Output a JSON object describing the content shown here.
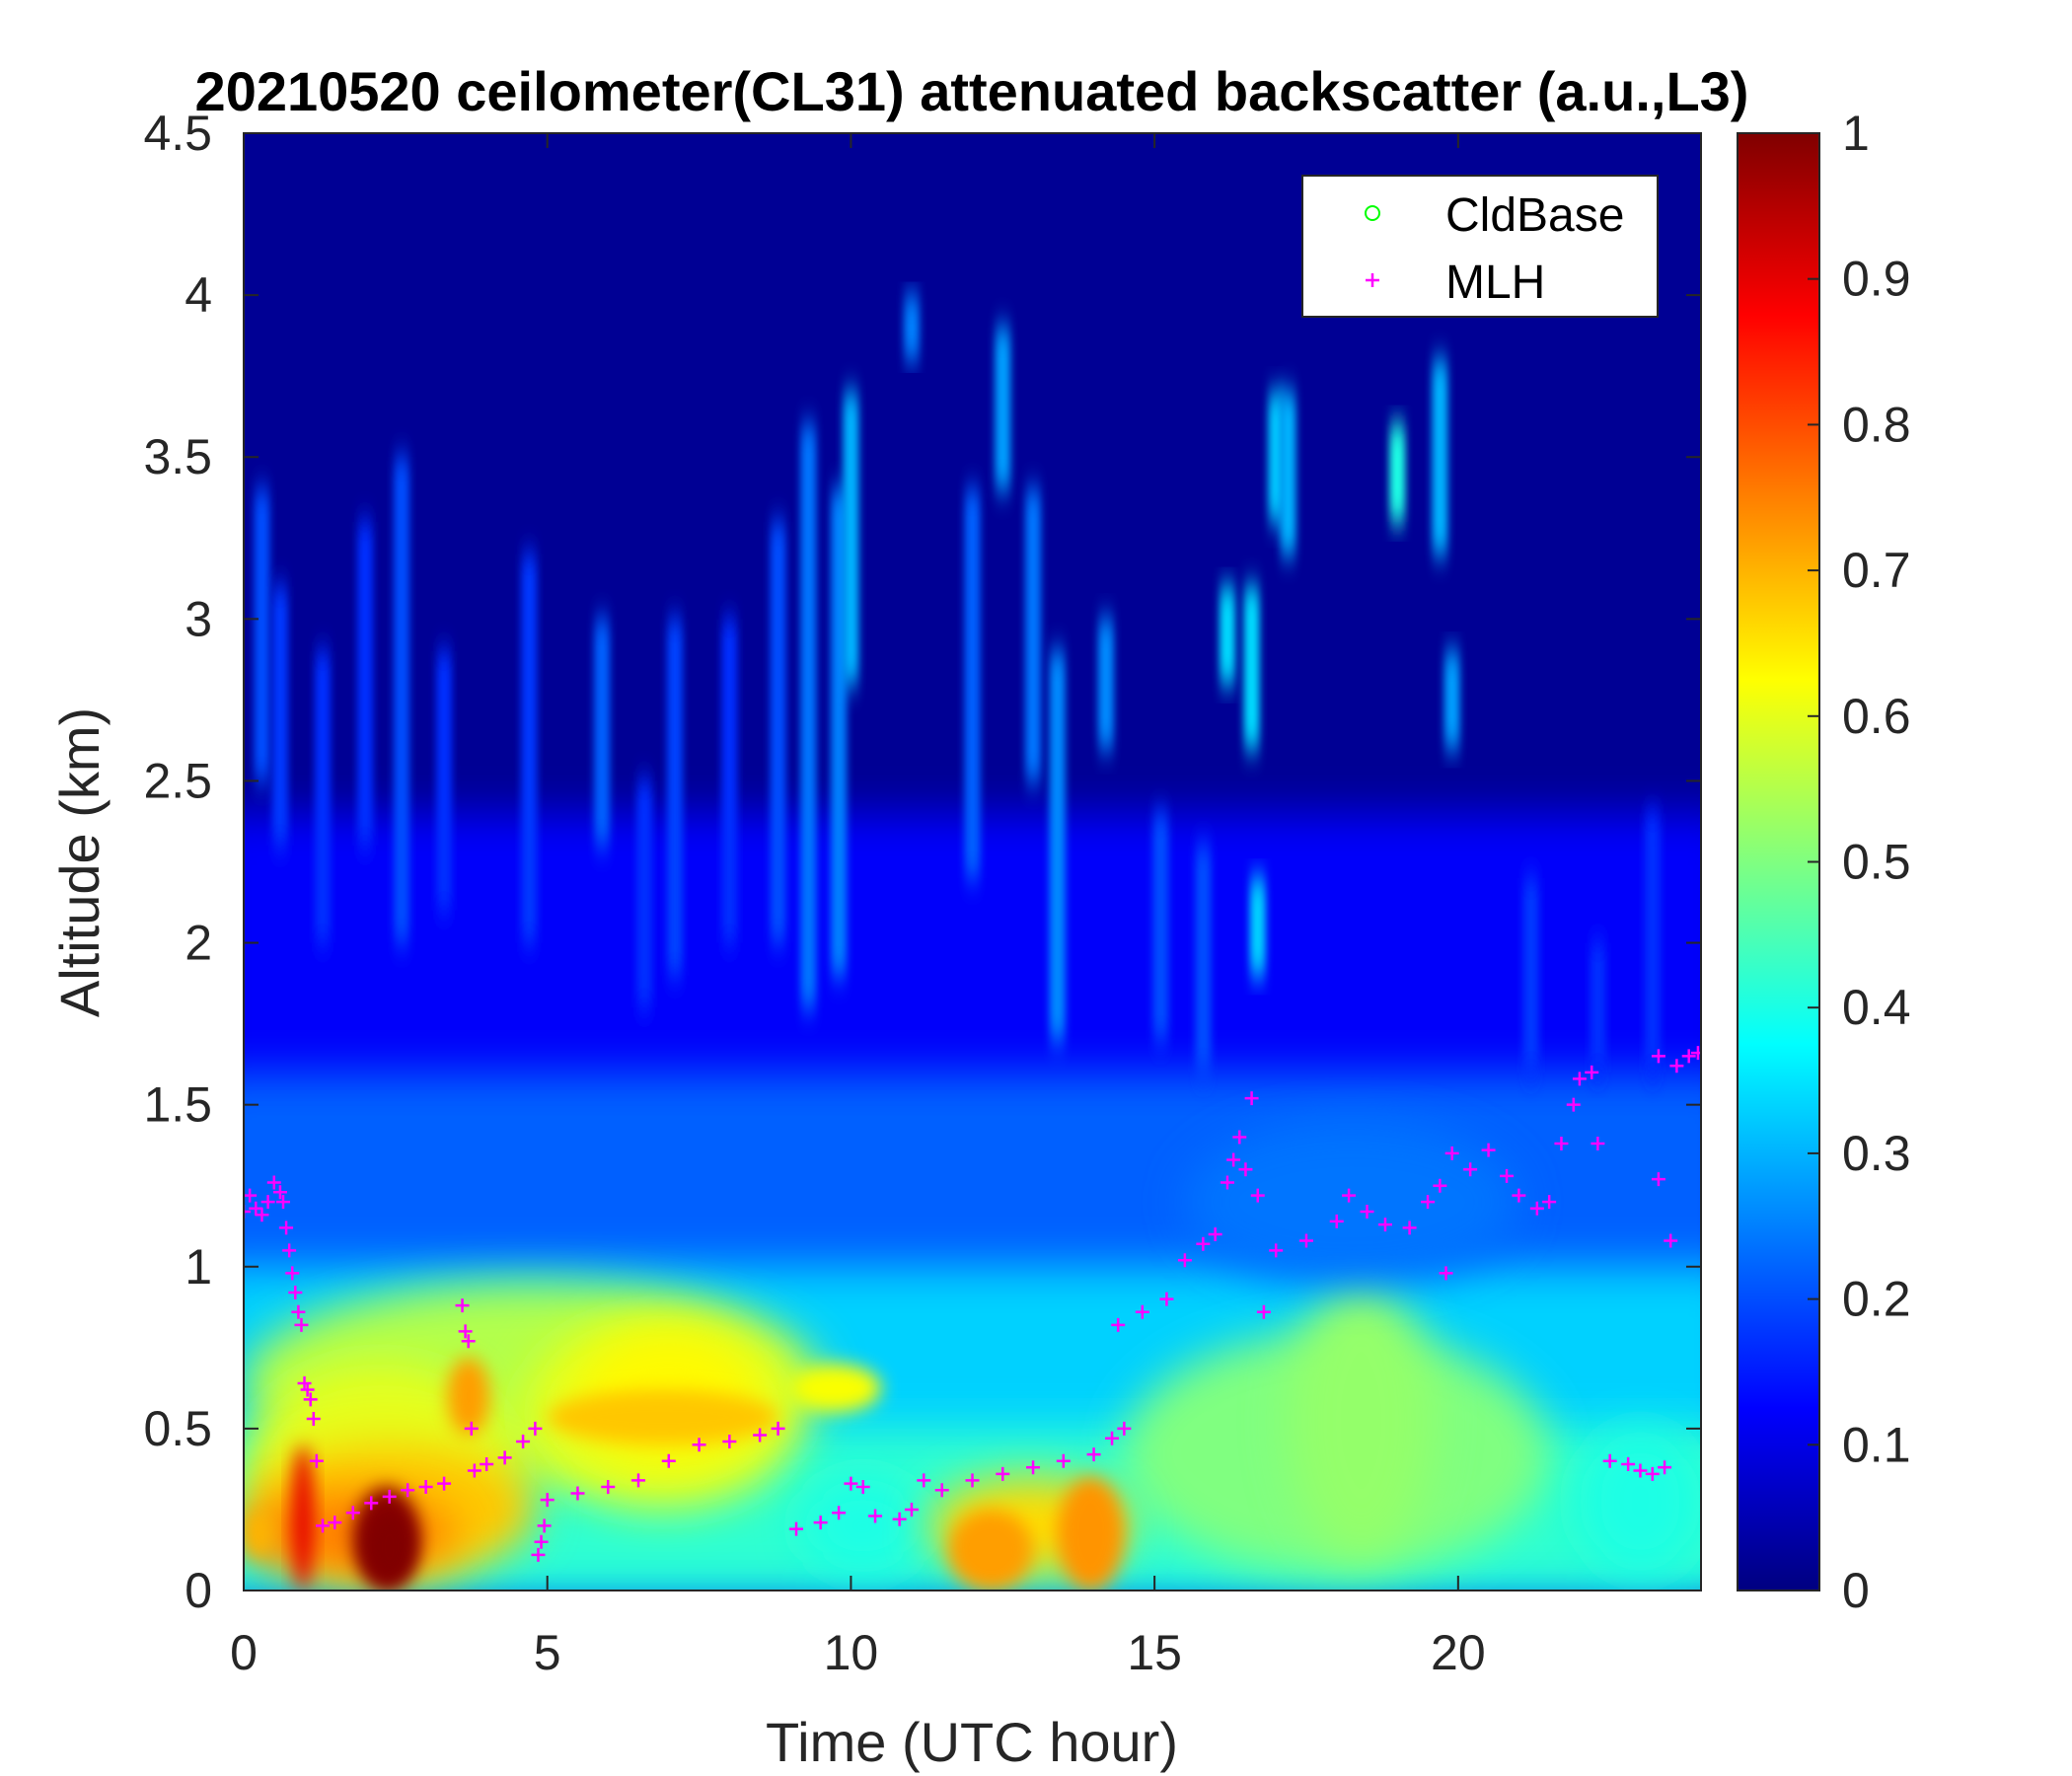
{
  "chart_data": {
    "type": "heatmap",
    "title": "20210520 ceilometer(CL31) attenuated backscatter (a.u.,L3)",
    "xlabel": "Time (UTC hour)",
    "ylabel": "Altitude (km)",
    "xlim": [
      0,
      24
    ],
    "ylim": [
      0,
      4.5
    ],
    "xticks": [
      0,
      5,
      10,
      15,
      20
    ],
    "xtick_labels": [
      "0",
      "5",
      "10",
      "15",
      "20"
    ],
    "yticks": [
      0,
      0.5,
      1,
      1.5,
      2,
      2.5,
      3,
      3.5,
      4,
      4.5
    ],
    "ytick_labels": [
      "0",
      "0.5",
      "1",
      "1.5",
      "2",
      "2.5",
      "3",
      "3.5",
      "4",
      "4.5"
    ],
    "colorbar": {
      "colormap": "jet",
      "range": [
        0,
        1
      ],
      "ticks": [
        0,
        0.1,
        0.2,
        0.3,
        0.4,
        0.5,
        0.6,
        0.7,
        0.8,
        0.9,
        1
      ],
      "tick_labels": [
        "0",
        "0.1",
        "0.2",
        "0.3",
        "0.4",
        "0.5",
        "0.6",
        "0.7",
        "0.8",
        "0.9",
        "1"
      ]
    },
    "legend": {
      "location": "top-right",
      "entries": [
        {
          "label": "CldBase",
          "marker": "o",
          "color": "#00ff00"
        },
        {
          "label": "MLH",
          "marker": "+",
          "color": "#ff00ff"
        }
      ]
    },
    "series": [
      {
        "name": "CldBase",
        "marker": "o",
        "color": "#00ff00",
        "points": []
      },
      {
        "name": "MLH",
        "marker": "+",
        "color": "#ff00ff",
        "points": [
          [
            0.0,
            1.17
          ],
          [
            0.1,
            1.22
          ],
          [
            0.2,
            1.18
          ],
          [
            0.3,
            1.16
          ],
          [
            0.4,
            1.2
          ],
          [
            0.5,
            1.26
          ],
          [
            0.6,
            1.23
          ],
          [
            0.65,
            1.2
          ],
          [
            0.7,
            1.12
          ],
          [
            0.75,
            1.05
          ],
          [
            0.8,
            0.98
          ],
          [
            0.85,
            0.92
          ],
          [
            0.9,
            0.86
          ],
          [
            0.95,
            0.82
          ],
          [
            1.0,
            0.64
          ],
          [
            1.05,
            0.62
          ],
          [
            1.1,
            0.59
          ],
          [
            1.15,
            0.53
          ],
          [
            1.2,
            0.4
          ],
          [
            1.3,
            0.2
          ],
          [
            1.5,
            0.21
          ],
          [
            1.8,
            0.24
          ],
          [
            2.1,
            0.27
          ],
          [
            2.4,
            0.29
          ],
          [
            2.7,
            0.31
          ],
          [
            3.0,
            0.32
          ],
          [
            3.3,
            0.33
          ],
          [
            3.6,
            0.88
          ],
          [
            3.65,
            0.8
          ],
          [
            3.7,
            0.77
          ],
          [
            3.75,
            0.5
          ],
          [
            3.8,
            0.37
          ],
          [
            4.0,
            0.39
          ],
          [
            4.3,
            0.41
          ],
          [
            4.6,
            0.46
          ],
          [
            4.8,
            0.5
          ],
          [
            4.85,
            0.11
          ],
          [
            4.9,
            0.15
          ],
          [
            4.95,
            0.2
          ],
          [
            5.0,
            0.28
          ],
          [
            5.5,
            0.3
          ],
          [
            6.0,
            0.32
          ],
          [
            6.5,
            0.34
          ],
          [
            7.0,
            0.4
          ],
          [
            7.5,
            0.45
          ],
          [
            8.0,
            0.46
          ],
          [
            8.5,
            0.48
          ],
          [
            8.8,
            0.5
          ],
          [
            9.1,
            0.19
          ],
          [
            9.5,
            0.21
          ],
          [
            9.8,
            0.24
          ],
          [
            10.0,
            0.33
          ],
          [
            10.2,
            0.32
          ],
          [
            10.4,
            0.23
          ],
          [
            10.8,
            0.22
          ],
          [
            11.0,
            0.25
          ],
          [
            11.2,
            0.34
          ],
          [
            11.5,
            0.31
          ],
          [
            12.0,
            0.34
          ],
          [
            12.5,
            0.36
          ],
          [
            13.0,
            0.38
          ],
          [
            13.5,
            0.4
          ],
          [
            14.0,
            0.42
          ],
          [
            14.3,
            0.47
          ],
          [
            14.5,
            0.5
          ],
          [
            14.4,
            0.82
          ],
          [
            14.8,
            0.86
          ],
          [
            15.2,
            0.9
          ],
          [
            15.5,
            1.02
          ],
          [
            15.8,
            1.07
          ],
          [
            16.0,
            1.1
          ],
          [
            16.2,
            1.26
          ],
          [
            16.3,
            1.33
          ],
          [
            16.4,
            1.4
          ],
          [
            16.5,
            1.3
          ],
          [
            16.6,
            1.52
          ],
          [
            16.7,
            1.22
          ],
          [
            16.8,
            0.86
          ],
          [
            17.0,
            1.05
          ],
          [
            17.5,
            1.08
          ],
          [
            18.0,
            1.14
          ],
          [
            18.2,
            1.22
          ],
          [
            18.5,
            1.17
          ],
          [
            18.8,
            1.13
          ],
          [
            19.2,
            1.12
          ],
          [
            19.5,
            1.2
          ],
          [
            19.7,
            1.25
          ],
          [
            19.8,
            0.98
          ],
          [
            19.9,
            1.35
          ],
          [
            20.2,
            1.3
          ],
          [
            20.5,
            1.36
          ],
          [
            20.8,
            1.28
          ],
          [
            21.0,
            1.22
          ],
          [
            21.3,
            1.18
          ],
          [
            21.5,
            1.2
          ],
          [
            21.7,
            1.38
          ],
          [
            21.9,
            1.5
          ],
          [
            22.0,
            1.58
          ],
          [
            22.2,
            1.6
          ],
          [
            22.3,
            1.38
          ],
          [
            22.5,
            0.4
          ],
          [
            22.8,
            0.39
          ],
          [
            23.0,
            0.37
          ],
          [
            23.2,
            0.36
          ],
          [
            23.4,
            0.38
          ],
          [
            23.3,
            1.27
          ],
          [
            23.5,
            1.08
          ],
          [
            23.3,
            1.65
          ],
          [
            23.6,
            1.62
          ],
          [
            23.8,
            1.65
          ],
          [
            23.95,
            1.66
          ]
        ]
      }
    ],
    "backscatter_features": [
      {
        "description": "strong aerosol layer",
        "x": [
          0.8,
          1.1
        ],
        "y": [
          0,
          0.45
        ],
        "value": 0.95
      },
      {
        "description": "strong aerosol layer",
        "x": [
          1.9,
          2.9
        ],
        "y": [
          0,
          0.3
        ],
        "value": 1.0
      },
      {
        "description": "moderate layer",
        "x": [
          3.4,
          4.0
        ],
        "y": [
          0.5,
          0.7
        ],
        "value": 0.7
      },
      {
        "description": "moderate layer",
        "x": [
          11.5,
          13.0
        ],
        "y": [
          0,
          0.25
        ],
        "value": 0.72
      },
      {
        "description": "moderate layer",
        "x": [
          13.3,
          14.5
        ],
        "y": [
          0,
          0.35
        ],
        "value": 0.72
      }
    ]
  }
}
